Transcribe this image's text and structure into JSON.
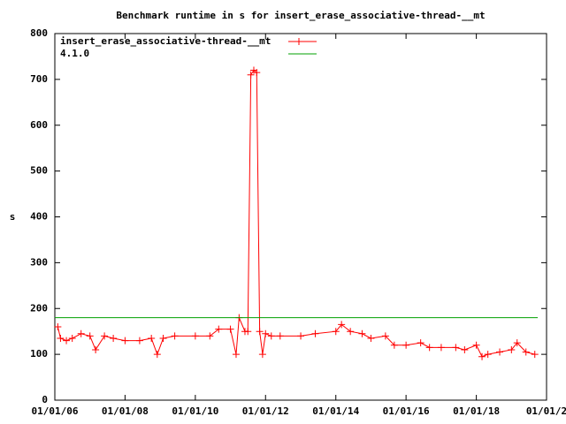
{
  "chart_data": {
    "type": "line",
    "title": "Benchmark runtime in s for insert_erase_associative-thread-__mt",
    "y_label": "s",
    "legend": "top-left",
    "xlim": [
      "2006-01-01",
      "2020-01-01"
    ],
    "ylim": [
      0,
      800
    ],
    "xticks": [
      {
        "value": "2006-01-01",
        "label": "01/01/06"
      },
      {
        "value": "2008-01-01",
        "label": "01/01/08"
      },
      {
        "value": "2010-01-01",
        "label": "01/01/10"
      },
      {
        "value": "2012-01-01",
        "label": "01/01/12"
      },
      {
        "value": "2014-01-01",
        "label": "01/01/14"
      },
      {
        "value": "2016-01-01",
        "label": "01/01/16"
      },
      {
        "value": "2018-01-01",
        "label": "01/01/18"
      },
      {
        "value": "2020-01-01",
        "label": "01/01/2"
      }
    ],
    "yticks": [
      0,
      100,
      200,
      300,
      400,
      500,
      600,
      700,
      800
    ],
    "series": [
      {
        "name": "insert_erase_associative-thread-__mt",
        "color": "#ff0000",
        "markers": true,
        "x": [
          "2006-02-01",
          "2006-03-01",
          "2006-05-01",
          "2006-07-01",
          "2006-10-01",
          "2007-01-01",
          "2007-03-01",
          "2007-06-01",
          "2007-09-01",
          "2008-01-01",
          "2008-06-01",
          "2008-10-01",
          "2008-12-01",
          "2009-02-01",
          "2009-06-01",
          "2010-01-01",
          "2010-06-01",
          "2010-09-01",
          "2011-01-01",
          "2011-03-01",
          "2011-04-01",
          "2011-06-01",
          "2011-07-01",
          "2011-08-01",
          "2011-09-01",
          "2011-10-01",
          "2011-11-01",
          "2011-12-01",
          "2012-01-01",
          "2012-03-01",
          "2012-06-01",
          "2013-01-01",
          "2013-06-01",
          "2014-01-01",
          "2014-03-01",
          "2014-06-01",
          "2014-10-01",
          "2015-01-01",
          "2015-06-01",
          "2015-09-01",
          "2016-01-01",
          "2016-06-01",
          "2016-09-01",
          "2017-01-01",
          "2017-06-01",
          "2017-09-01",
          "2018-01-01",
          "2018-03-01",
          "2018-05-01",
          "2018-09-01",
          "2019-01-01",
          "2019-03-01",
          "2019-06-01",
          "2019-09-01"
        ],
        "values": [
          160,
          135,
          130,
          135,
          145,
          140,
          110,
          140,
          135,
          130,
          130,
          135,
          100,
          135,
          140,
          140,
          140,
          155,
          155,
          100,
          180,
          150,
          150,
          710,
          720,
          715,
          150,
          100,
          145,
          140,
          140,
          140,
          145,
          150,
          165,
          150,
          145,
          135,
          140,
          120,
          120,
          125,
          115,
          115,
          115,
          110,
          120,
          95,
          100,
          105,
          110,
          125,
          105,
          100
        ]
      },
      {
        "name": "4.1.0",
        "color": "#00a000",
        "markers": false,
        "x": [
          "2006-01-01",
          "2019-10-01"
        ],
        "values": [
          180,
          180
        ]
      }
    ]
  }
}
